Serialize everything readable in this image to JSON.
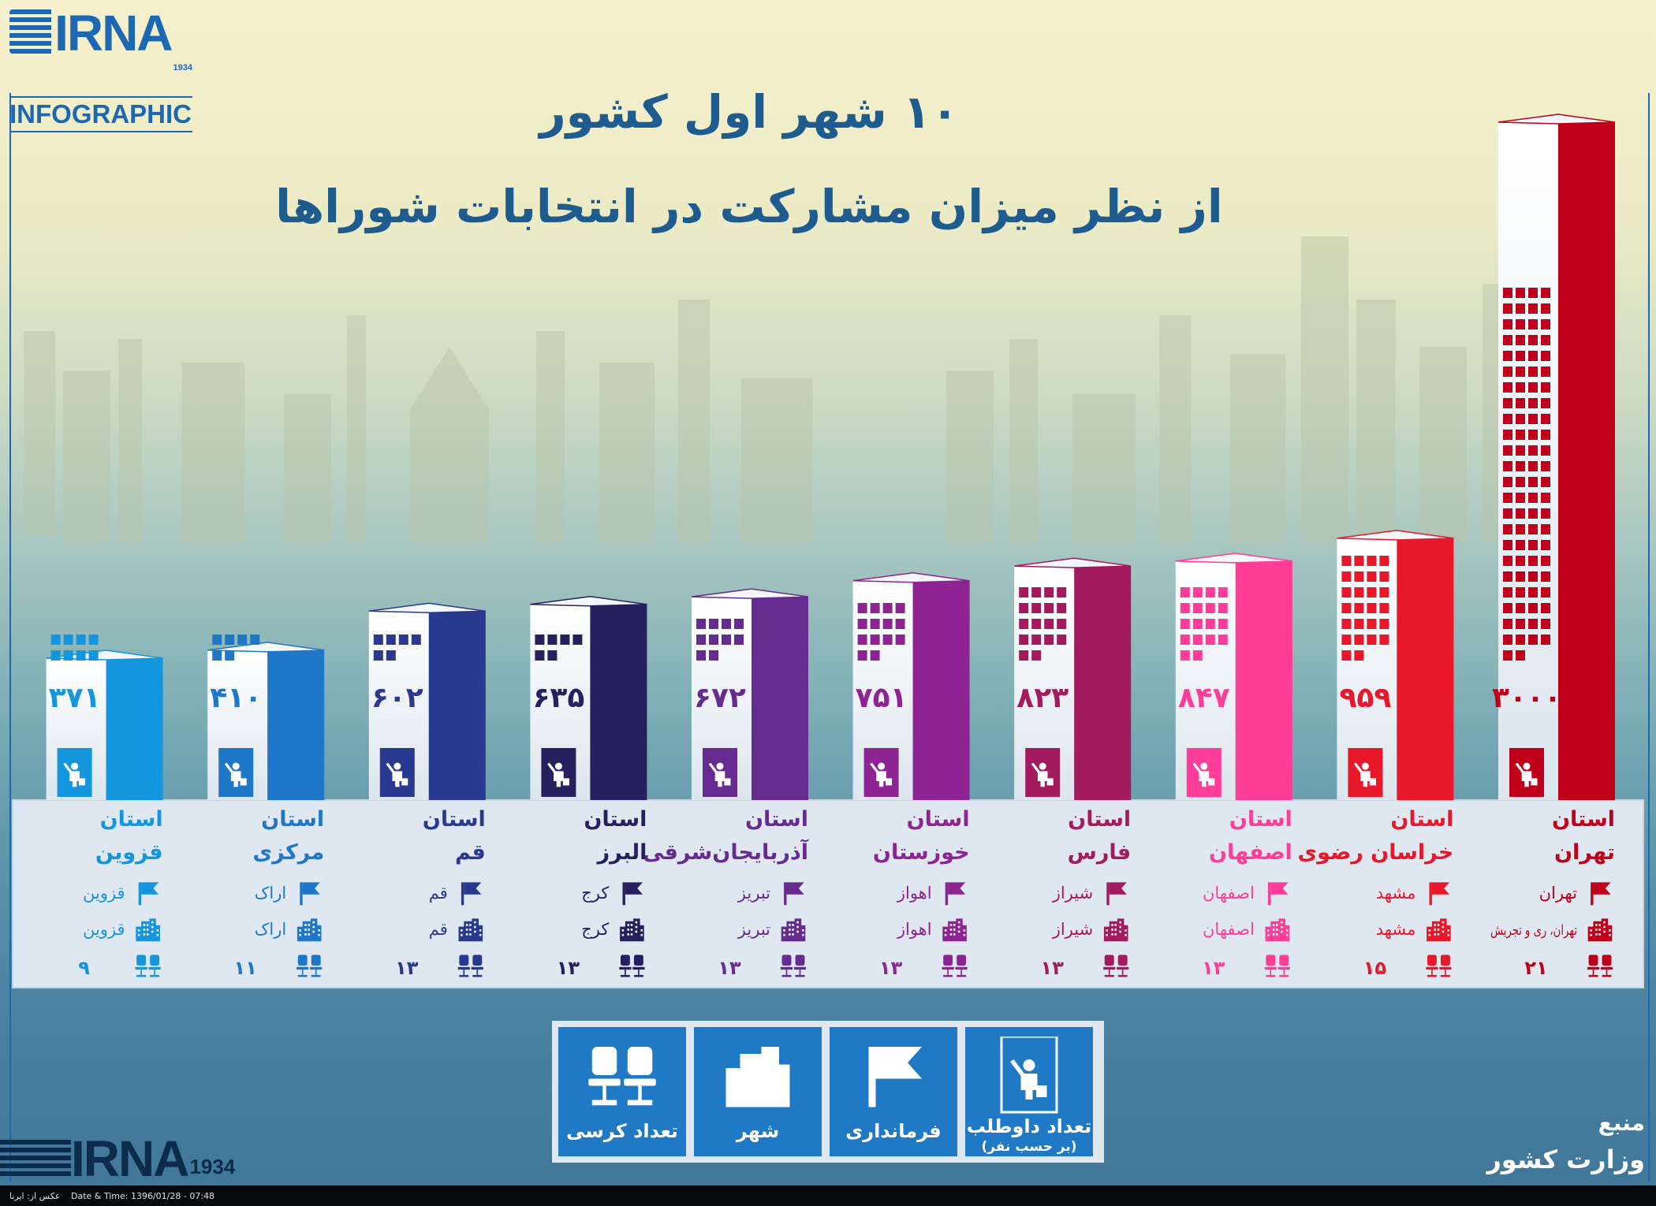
{
  "brand": {
    "logo_text": "IRNA",
    "logo_year": "1934",
    "logo_sub": "INFOGRAPHIC",
    "primary_color": "#1d68b3"
  },
  "title": {
    "line1": "۱۰ شهر اول کشور",
    "line2": "از نظر میزان مشارکت در انتخابات شوراها"
  },
  "chart_data": {
    "type": "bar",
    "title": "۱۰ شهر اول کشور از نظر میزان مشارکت در انتخابات شوراها",
    "categories": [
      {
        "prefix": "استان",
        "province": "تهران",
        "governorate": "تهران",
        "city": "تهران، ری و تجریش",
        "seats": 21,
        "seats_label": "۲۱",
        "candidates": 3000,
        "candidates_label": "۳۰۰۰",
        "color": "#c0001a"
      },
      {
        "prefix": "استان",
        "province": "خراسان رضوی",
        "governorate": "مشهد",
        "city": "مشهد",
        "seats": 15,
        "seats_label": "۱۵",
        "candidates": 959,
        "candidates_label": "۹۵۹",
        "color": "#e8172a"
      },
      {
        "prefix": "استان",
        "province": "اصفهان",
        "governorate": "اصفهان",
        "city": "اصفهان",
        "seats": 13,
        "seats_label": "۱۳",
        "candidates": 847,
        "candidates_label": "۸۴۷",
        "color": "#ff3d99"
      },
      {
        "prefix": "استان",
        "province": "فارس",
        "governorate": "شیراز",
        "city": "شیراز",
        "seats": 13,
        "seats_label": "۱۳",
        "candidates": 823,
        "candidates_label": "۸۲۳",
        "color": "#a31a5f"
      },
      {
        "prefix": "استان",
        "province": "خوزستان",
        "governorate": "اهواز",
        "city": "اهواز",
        "seats": 13,
        "seats_label": "۱۳",
        "candidates": 751,
        "candidates_label": "۷۵۱",
        "color": "#8e2494"
      },
      {
        "prefix": "استان",
        "province": "آذربایجان‌شرقی",
        "governorate": "تبریز",
        "city": "تبریز",
        "seats": 13,
        "seats_label": "۱۳",
        "candidates": 672,
        "candidates_label": "۶۷۲",
        "color": "#662b91"
      },
      {
        "prefix": "استان",
        "province": "البرز",
        "governorate": "کرج",
        "city": "کرج",
        "seats": 13,
        "seats_label": "۱۳",
        "candidates": 635,
        "candidates_label": "۶۳۵",
        "color": "#26205e"
      },
      {
        "prefix": "استان",
        "province": "قم",
        "governorate": "قم",
        "city": "قم",
        "seats": 13,
        "seats_label": "۱۳",
        "candidates": 602,
        "candidates_label": "۶۰۲",
        "color": "#2a3990"
      },
      {
        "prefix": "استان",
        "province": "مرکزی",
        "governorate": "اراک",
        "city": "اراک",
        "seats": 11,
        "seats_label": "۱۱",
        "candidates": 410,
        "candidates_label": "۴۱۰",
        "color": "#1f77c9"
      },
      {
        "prefix": "استان",
        "province": "قزوین",
        "governorate": "قزوین",
        "city": "قزوین",
        "seats": 9,
        "seats_label": "۹",
        "candidates": 371,
        "candidates_label": "۳۷۱",
        "color": "#1396de"
      }
    ],
    "values": [
      3000,
      959,
      847,
      823,
      751,
      672,
      635,
      602,
      410,
      371
    ],
    "grid": false,
    "legend_position": "bottom-center"
  },
  "legend": {
    "items": [
      {
        "icon": "candidate-icon",
        "label": "تعداد داوطلب",
        "sub": "(بر حسب نفر)"
      },
      {
        "icon": "flag-icon",
        "label": "فرمانداری"
      },
      {
        "icon": "city-icon",
        "label": "شهر"
      },
      {
        "icon": "chairs-icon",
        "label": "تعداد کرسی"
      }
    ]
  },
  "source": {
    "label": "منبع",
    "name": "وزارت کشور"
  },
  "footer": {
    "photo_credit": "عکس از: ایرنا",
    "datetime": "Date & Time: 1396/01/28 - 07:48"
  }
}
